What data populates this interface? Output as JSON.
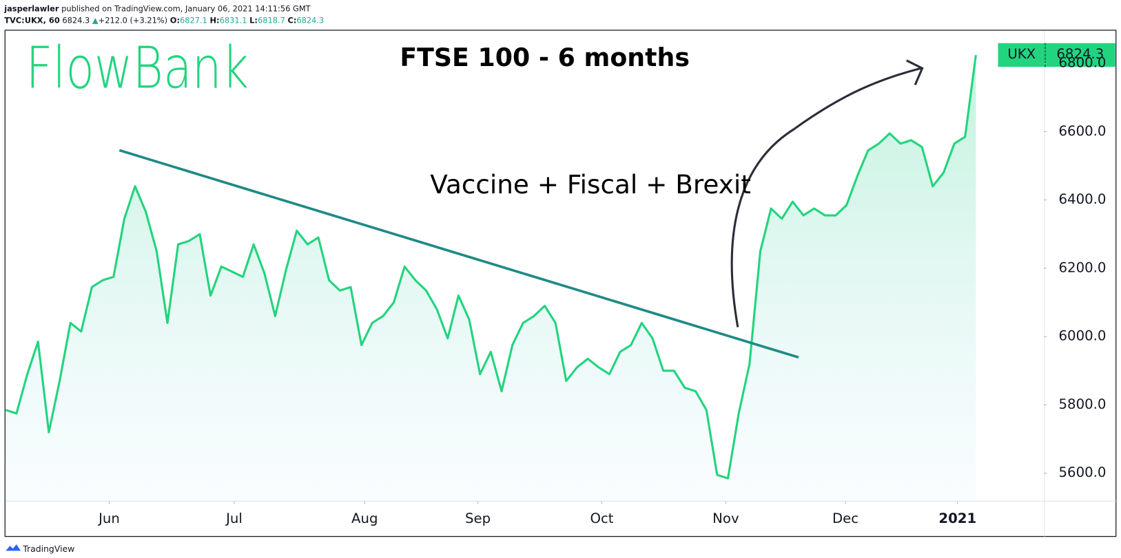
{
  "header": {
    "author": "jasperlawler",
    "published": "published on TradingView.com, January 06, 2021 14:11:56 GMT",
    "symbol": "TVC:UKX, 60",
    "last": 6824.3,
    "arrow": "▲",
    "change": "+212.0 (+3.21%)",
    "o_label": "O:",
    "open": 6827.1,
    "h_label": "H:",
    "high": 6831.1,
    "l_label": "L:",
    "low": 6818.7,
    "c_label": "C:",
    "close": 6824.3
  },
  "logo": "FlowBank",
  "footer": "TradingView",
  "chart_data": {
    "type": "area",
    "title": "FTSE 100 - 6 months",
    "annotation": "Vaccine + Fiscal + Brexit",
    "symbol_label": "UKX",
    "series": [
      {
        "name": "UKX",
        "color": "#22d47e",
        "values": [
          5785,
          5775,
          5890,
          5985,
          5720,
          5870,
          6040,
          6015,
          6145,
          6165,
          6175,
          6345,
          6440,
          6365,
          6250,
          6040,
          6270,
          6280,
          6300,
          6120,
          6205,
          6190,
          6175,
          6270,
          6185,
          6060,
          6195,
          6310,
          6270,
          6290,
          6165,
          6135,
          6145,
          5975,
          6040,
          6060,
          6100,
          6205,
          6165,
          6135,
          6080,
          5995,
          6120,
          6050,
          5890,
          5955,
          5840,
          5975,
          6040,
          6060,
          6090,
          6040,
          5870,
          5910,
          5935,
          5910,
          5890,
          5955,
          5975,
          6040,
          5995,
          5900,
          5900,
          5850,
          5840,
          5785,
          5595,
          5585,
          5775,
          5920,
          6250,
          6375,
          6345,
          6395,
          6355,
          6375,
          6355,
          6355,
          6385,
          6470,
          6545,
          6565,
          6595,
          6565,
          6575,
          6555,
          6440,
          6480,
          6565,
          6585,
          6824.3
        ]
      }
    ],
    "xlim": [
      0,
      96.3
    ],
    "xticks": [
      {
        "value": 9.6,
        "label": "Jun"
      },
      {
        "value": 21.2,
        "label": "Jul"
      },
      {
        "value": 33.3,
        "label": "Aug"
      },
      {
        "value": 43.8,
        "label": "Sep"
      },
      {
        "value": 55.3,
        "label": "Oct"
      },
      {
        "value": 66.8,
        "label": "Nov"
      },
      {
        "value": 77.9,
        "label": "Dec"
      },
      {
        "value": 88.3,
        "label": "2021"
      }
    ],
    "ylim": [
      5518,
      6895
    ],
    "yticks": [
      {
        "value": 5600,
        "label": "5600.0"
      },
      {
        "value": 5800,
        "label": "5800.0"
      },
      {
        "value": 6000,
        "label": "6000.0"
      },
      {
        "value": 6200,
        "label": "6200.0"
      },
      {
        "value": 6400,
        "label": "6400.0"
      },
      {
        "value": 6600,
        "label": "6600.0"
      },
      {
        "value": 6800,
        "label": "6800.0"
      }
    ],
    "grid": false
  }
}
